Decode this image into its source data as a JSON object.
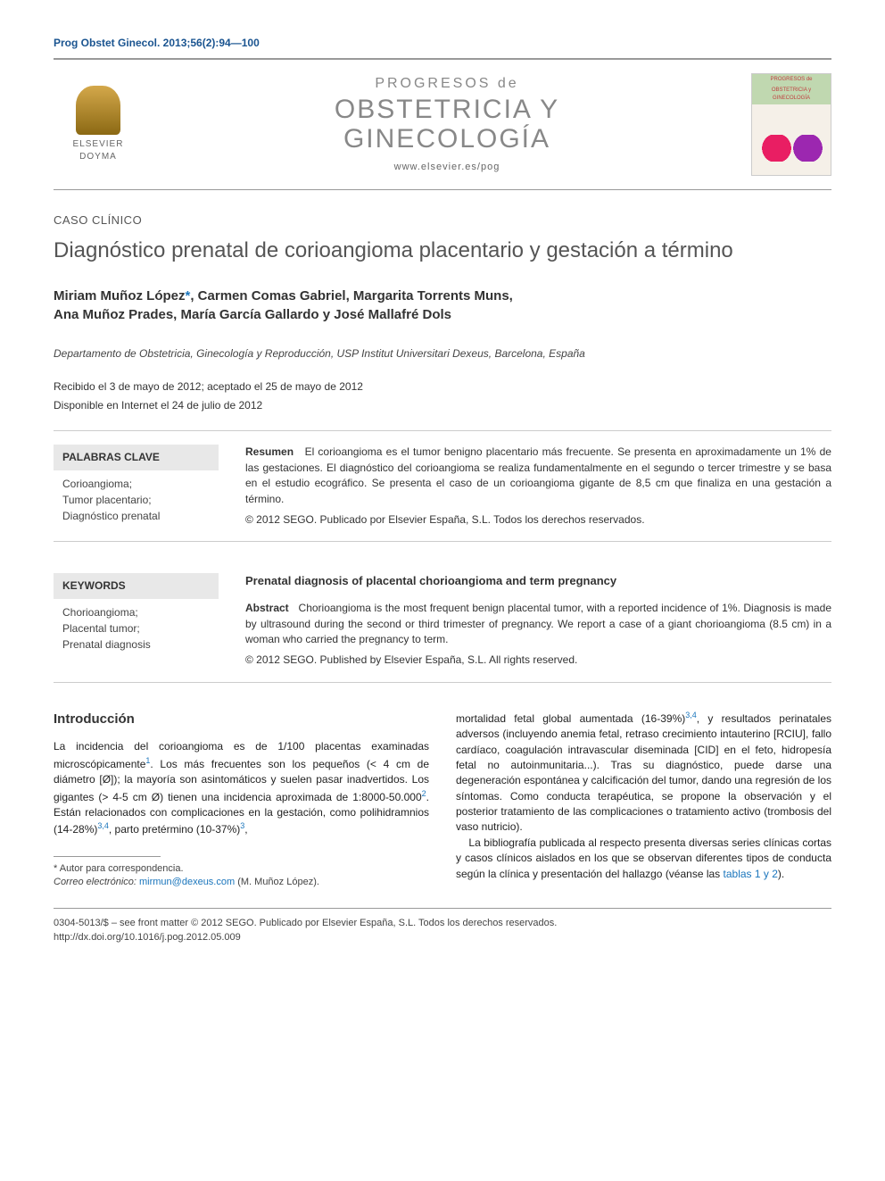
{
  "citation": "Prog Obstet Ginecol. 2013;56(2):94—100",
  "publisher_logo": {
    "line1": "ELSEVIER",
    "line2": "DOYMA"
  },
  "journal": {
    "pre": "PROGRESOS de",
    "line1": "OBSTETRICIA Y",
    "line2": "GINECOLOGÍA",
    "url": "www.elsevier.es/pog"
  },
  "cover": {
    "small_pre": "PROGRESOS de",
    "small_title": "OBSTETRICIA y GINECOLOGÍA"
  },
  "article_type": "CASO CLÍNICO",
  "title": "Diagnóstico prenatal de corioangioma placentario y gestación a término",
  "authors": "Miriam Muñoz López*, Carmen Comas Gabriel, Margarita Torrents Muns, Ana Muñoz Prades, María García Gallardo y José Mallafré Dols",
  "affiliation": "Departamento de Obstetricia, Ginecología y Reproducción, USP Institut Universitari Dexeus, Barcelona, España",
  "date_received": "Recibido el 3 de mayo de 2012; aceptado el 25 de mayo de 2012",
  "date_online": "Disponible en Internet el 24 de julio de 2012",
  "keywords_es": {
    "heading": "PALABRAS CLAVE",
    "items": "Corioangioma;\nTumor placentario;\nDiagnóstico prenatal"
  },
  "abstract_es": {
    "label": "Resumen",
    "text": "El corioangioma es el tumor benigno placentario más frecuente. Se presenta en aproximadamente un 1% de las gestaciones. El diagnóstico del corioangioma se realiza fundamentalmente en el segundo o tercer trimestre y se basa en el estudio ecográfico. Se presenta el caso de un corioangioma gigante de 8,5 cm que finaliza en una gestación a término.",
    "copyright": "© 2012 SEGO. Publicado por Elsevier España, S.L. Todos los derechos reservados."
  },
  "keywords_en": {
    "heading": "KEYWORDS",
    "items": "Chorioangioma;\nPlacental tumor;\nPrenatal diagnosis"
  },
  "abstract_en": {
    "title": "Prenatal diagnosis of placental chorioangioma and term pregnancy",
    "label": "Abstract",
    "text": "Chorioangioma is the most frequent benign placental tumor, with a reported incidence of 1%. Diagnosis is made by ultrasound during the second or third trimester of pregnancy. We report a case of a giant chorioangioma (8.5 cm) in a woman who carried the pregnancy to term.",
    "copyright": "© 2012 SEGO. Published by Elsevier España, S.L. All rights reserved."
  },
  "body": {
    "heading": "Introducción",
    "col1_p1_a": "La incidencia del corioangioma es de 1/100 placentas examinadas microscópicamente",
    "col1_p1_b": ". Los más frecuentes son los pequeños (< 4 cm de diámetro [Ø]); la mayoría son asintomáticos y suelen pasar inadvertidos. Los gigantes (> 4-5 cm Ø) tienen una incidencia aproximada de 1:8000-50.000",
    "col1_p1_c": ". Están relacionados con complicaciones en la gestación, como polihidramnios (14-28%)",
    "col1_p1_d": ", parto pretérmino (10-37%)",
    "col2_p1_a": "mortalidad fetal global aumentada (16-39%)",
    "col2_p1_b": ", y resultados perinatales adversos (incluyendo anemia fetal, retraso crecimiento intauterino [RCIU], fallo cardíaco, coagulación intravascular diseminada [CID] en el feto, hidropesía fetal no autoinmunitaria...). Tras su diagnóstico, puede darse una degeneración espontánea y calcificación del tumor, dando una regresión de los síntomas. Como conducta terapéutica, se propone la observación y el posterior tratamiento de las complicaciones o tratamiento activo (trombosis del vaso nutricio).",
    "col2_p2_a": "La bibliografía publicada al respecto presenta diversas series clínicas cortas y casos clínicos aislados en los que se observan diferentes tipos de conducta según la clínica y presentación del hallazgo (véanse las ",
    "col2_p2_link": "tablas 1 y 2",
    "col2_p2_b": ").",
    "ref1": "1",
    "ref2": "2",
    "ref34": "3,4",
    "ref3": "3"
  },
  "footnote": {
    "corr": "* Autor para correspondencia.",
    "email_label": "Correo electrónico: ",
    "email": "mirmun@dexeus.com",
    "email_author": " (M. Muñoz López)."
  },
  "footer": {
    "issn_line": "0304-5013/$ – see front matter © 2012 SEGO. Publicado por Elsevier España, S.L. Todos los derechos reservados.",
    "doi": "http://dx.doi.org/10.1016/j.pog.2012.05.009"
  },
  "colors": {
    "link_blue": "#1a75bc",
    "header_blue": "#1a5490",
    "gray_text": "#888",
    "keyword_bg": "#e8e8e8"
  }
}
